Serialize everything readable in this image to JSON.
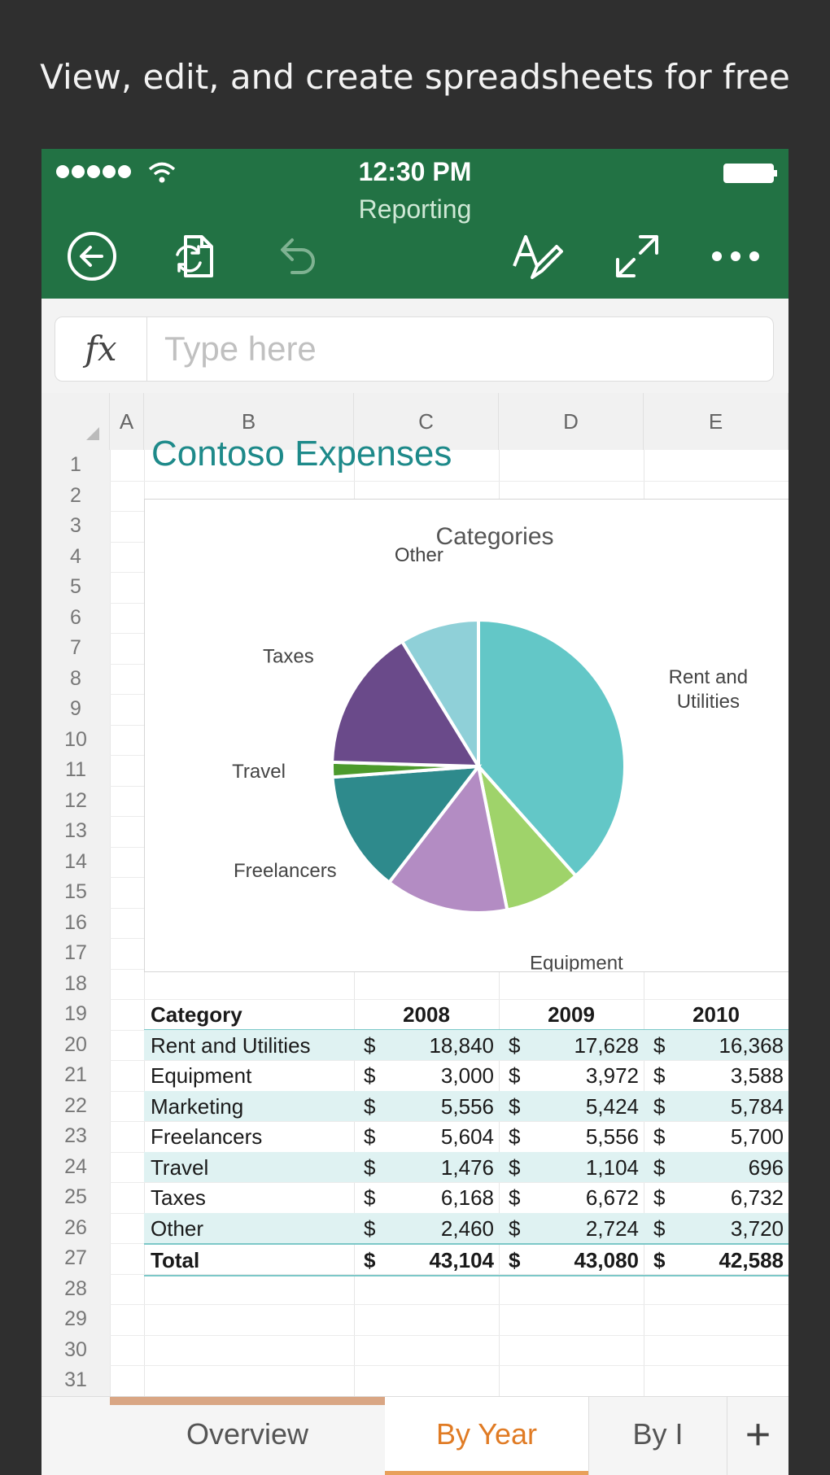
{
  "caption": "View, edit, and create spreadsheets for free",
  "status": {
    "time": "12:30 PM"
  },
  "document": {
    "title": "Reporting"
  },
  "formula_bar": {
    "fx_label": "fx",
    "placeholder": "Type here"
  },
  "columns": [
    "A",
    "B",
    "C",
    "D",
    "E"
  ],
  "rows": [
    "1",
    "2",
    "3",
    "4",
    "5",
    "6",
    "7",
    "8",
    "9",
    "10",
    "11",
    "12",
    "13",
    "14",
    "15",
    "16",
    "17",
    "18",
    "19",
    "20",
    "21",
    "22",
    "23",
    "24",
    "25",
    "26",
    "27",
    "28",
    "29",
    "30",
    "31"
  ],
  "sheet": {
    "title": "Contoso Expenses"
  },
  "chart_data": {
    "type": "pie",
    "title": "Categories",
    "slices": [
      {
        "label": "Rent and Utilities",
        "value": 16368,
        "color": "#63c7c7"
      },
      {
        "label": "Equipment",
        "value": 3588,
        "color": "#9fd36a"
      },
      {
        "label": "Marketing",
        "value": 5784,
        "color": "#b38cc3"
      },
      {
        "label": "Freelancers",
        "value": 5700,
        "color": "#2e8a8c"
      },
      {
        "label": "Travel",
        "value": 696,
        "color": "#4c9a2c"
      },
      {
        "label": "Taxes",
        "value": 6732,
        "color": "#6a4a8a"
      },
      {
        "label": "Other",
        "value": 3720,
        "color": "#8fd0d8"
      }
    ]
  },
  "table": {
    "header": {
      "category": "Category",
      "years": [
        "2008",
        "2009",
        "2010"
      ]
    },
    "rows": [
      {
        "category": "Rent and Utilities",
        "values": [
          "18,840",
          "17,628",
          "16,368"
        ]
      },
      {
        "category": "Equipment",
        "values": [
          "3,000",
          "3,972",
          "3,588"
        ]
      },
      {
        "category": "Marketing",
        "values": [
          "5,556",
          "5,424",
          "5,784"
        ]
      },
      {
        "category": "Freelancers",
        "values": [
          "5,604",
          "5,556",
          "5,700"
        ]
      },
      {
        "category": "Travel",
        "values": [
          "1,476",
          "1,104",
          "696"
        ]
      },
      {
        "category": "Taxes",
        "values": [
          "6,168",
          "6,672",
          "6,732"
        ]
      },
      {
        "category": "Other",
        "values": [
          "2,460",
          "2,724",
          "3,720"
        ]
      }
    ],
    "total": {
      "category": "Total",
      "values": [
        "43,104",
        "43,080",
        "42,588"
      ]
    },
    "currency": "$"
  },
  "tabs": [
    {
      "label": "Overview",
      "active": false
    },
    {
      "label": "By Year",
      "active": true
    },
    {
      "label": "By I",
      "active": false
    }
  ],
  "add_tab_label": "+",
  "colors": {
    "brand": "#227244",
    "accent": "#e07b24",
    "title": "#1e8a8a"
  }
}
